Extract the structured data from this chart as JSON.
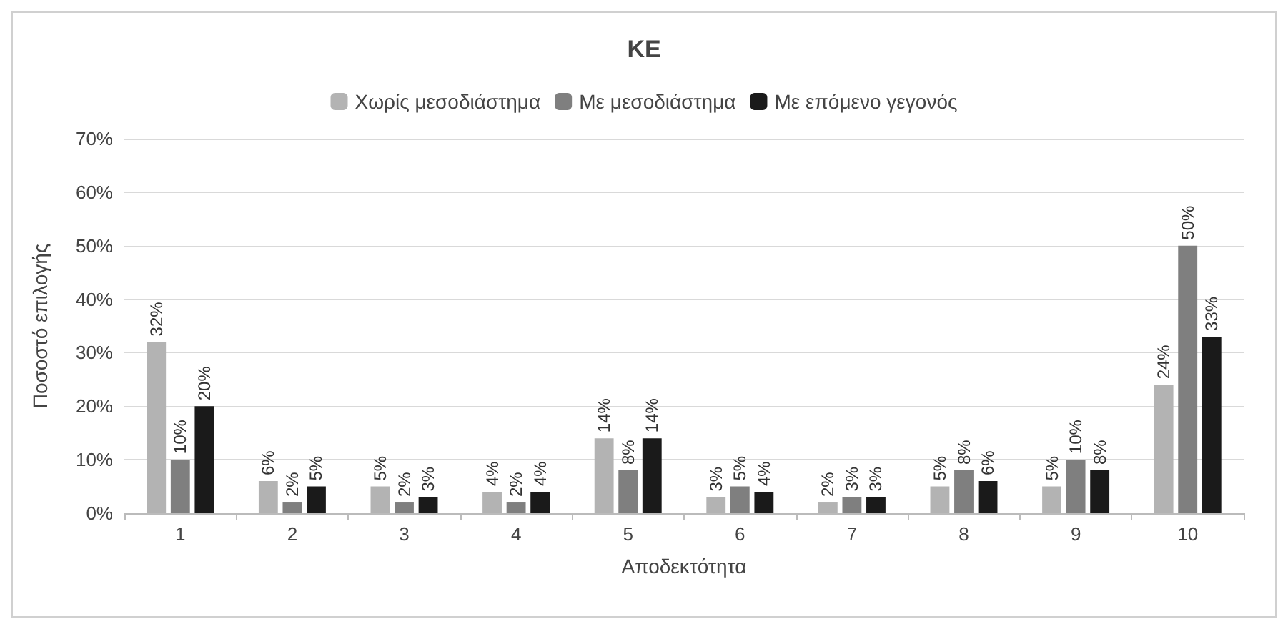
{
  "chart_data": {
    "type": "bar",
    "title": "ΚΕ",
    "xlabel": "Αποδεκτότητα",
    "ylabel": "Ποσοστό επιλογής",
    "categories": [
      "1",
      "2",
      "3",
      "4",
      "5",
      "6",
      "7",
      "8",
      "9",
      "10"
    ],
    "series": [
      {
        "name": "Χωρίς μεσοδιάστημα",
        "color": "#b3b3b3",
        "values": [
          32,
          6,
          5,
          4,
          14,
          3,
          2,
          5,
          5,
          24
        ],
        "value_labels": [
          "32%",
          "6%",
          "5%",
          "4%",
          "14%",
          "3%",
          "2%",
          "5%",
          "5%",
          "24%"
        ]
      },
      {
        "name": "Με μεσοδιάστημα",
        "color": "#7f7f7f",
        "values": [
          10,
          2,
          2,
          2,
          8,
          5,
          3,
          8,
          10,
          50
        ],
        "value_labels": [
          "10%",
          "2%",
          "2%",
          "2%",
          "8%",
          "5%",
          "3%",
          "8%",
          "10%",
          "50%"
        ]
      },
      {
        "name": "Με επόμενο γεγονός",
        "color": "#1a1a1a",
        "values": [
          20,
          5,
          3,
          4,
          14,
          4,
          3,
          6,
          8,
          33
        ],
        "value_labels": [
          "20%",
          "5%",
          "3%",
          "4%",
          "14%",
          "4%",
          "3%",
          "6%",
          "8%",
          "33%"
        ]
      }
    ],
    "ylim": [
      0,
      70
    ],
    "yticks": [
      {
        "value": 0,
        "label": "0%"
      },
      {
        "value": 10,
        "label": "10%"
      },
      {
        "value": 20,
        "label": "20%"
      },
      {
        "value": 30,
        "label": "30%"
      },
      {
        "value": 40,
        "label": "40%"
      },
      {
        "value": 50,
        "label": "50%"
      },
      {
        "value": 60,
        "label": "60%"
      },
      {
        "value": 70,
        "label": "70%"
      }
    ],
    "grid": "y",
    "legend": "top"
  }
}
